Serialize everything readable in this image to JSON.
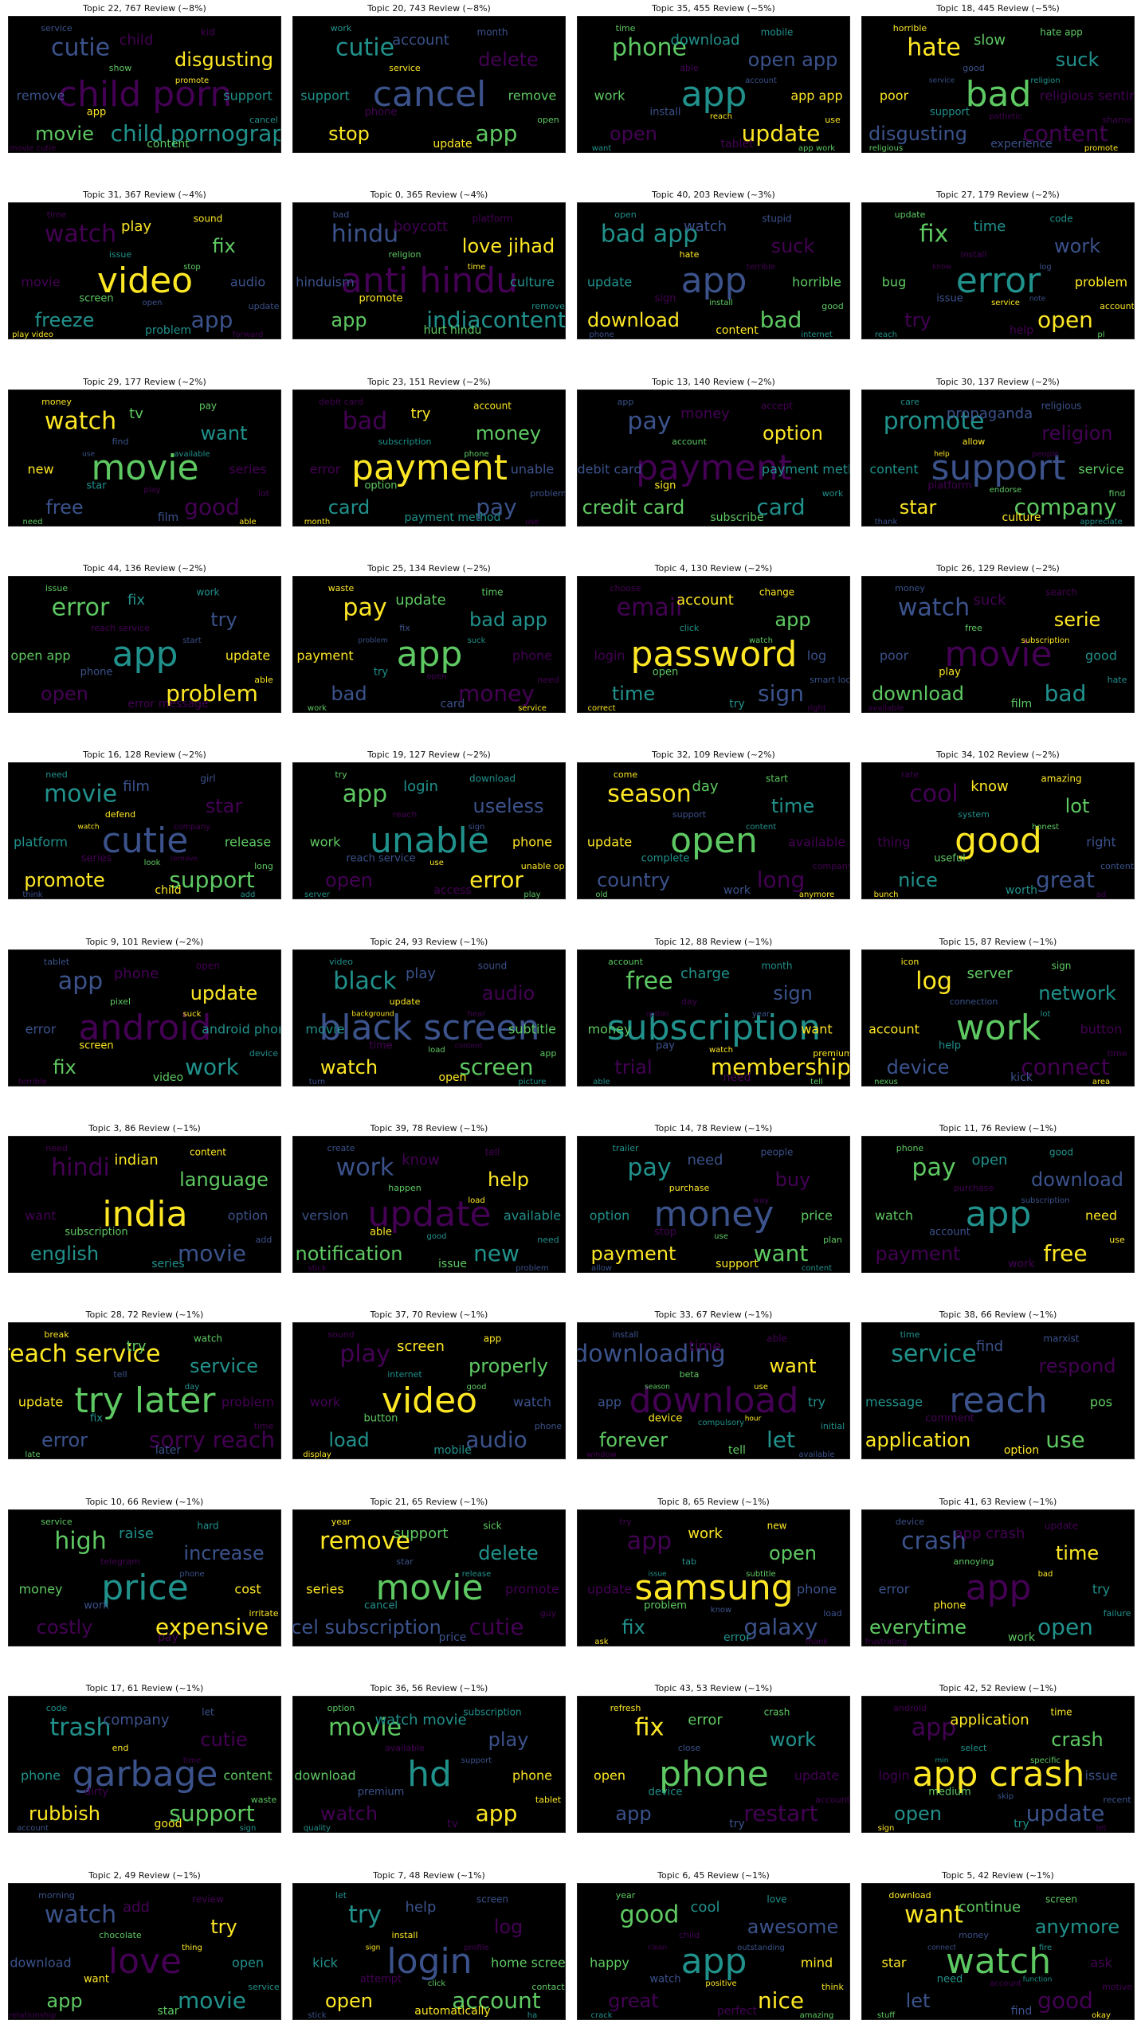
{
  "chart_data": {
    "type": "wordcloud-grid",
    "palette": [
      "#440154",
      "#3b528b",
      "#21918c",
      "#5ec962",
      "#fde725"
    ],
    "background": "#000000",
    "panels": [
      {
        "title": "Topic 22, 767 Review (~8%)",
        "words": [
          "child porn",
          "cutie",
          "child pornography",
          "movie",
          "disgusting",
          "child",
          "remove",
          "support",
          "content",
          "app",
          "kid",
          "service",
          "cancel",
          "show",
          "promote",
          "movie cutie"
        ]
      },
      {
        "title": "Topic 20, 743 Review (~8%)",
        "words": [
          "cancel",
          "cutie",
          "app",
          "stop",
          "delete",
          "account",
          "support",
          "remove",
          "update",
          "phone",
          "month",
          "work",
          "open",
          "service"
        ]
      },
      {
        "title": "Topic 35, 455 Review (~5%)",
        "words": [
          "app",
          "phone",
          "update",
          "open",
          "open app",
          "download",
          "work",
          "app app",
          "tablet",
          "install",
          "mobile",
          "time",
          "use",
          "able",
          "account",
          "want",
          "app work",
          "reach"
        ]
      },
      {
        "title": "Topic 18, 445 Review (~5%)",
        "words": [
          "bad",
          "hate",
          "content",
          "disgusting",
          "suck",
          "slow",
          "poor",
          "religious sentiment",
          "experience",
          "support",
          "hate app",
          "horrible",
          "shame",
          "good",
          "religion",
          "religious",
          "promote",
          "pathetic",
          "service"
        ]
      },
      {
        "title": "Topic 31, 367 Review (~4%)",
        "words": [
          "video",
          "watch",
          "app",
          "freeze",
          "fix",
          "play",
          "movie",
          "audio",
          "problem",
          "screen",
          "sound",
          "time",
          "update",
          "issue",
          "stop",
          "play video",
          "forward",
          "open"
        ]
      },
      {
        "title": "Topic 0, 365 Review (~4%)",
        "words": [
          "anti hindu",
          "hindu",
          "indiacontent",
          "app",
          "love jihad",
          "boycott",
          "hinduism",
          "culture",
          "hurt hindu",
          "promote",
          "platform",
          "bad",
          "remove",
          "religion",
          "time"
        ]
      },
      {
        "title": "Topic 40, 203 Review (~3%)",
        "words": [
          "app",
          "bad app",
          "bad",
          "download",
          "suck",
          "watch",
          "update",
          "horrible",
          "content",
          "sign",
          "stupid",
          "open",
          "good",
          "hate",
          "terrible",
          "phone",
          "internet",
          "install"
        ]
      },
      {
        "title": "Topic 27, 179 Review (~2%)",
        "words": [
          "error",
          "fix",
          "open",
          "try",
          "work",
          "time",
          "bug",
          "problem",
          "help",
          "issue",
          "code",
          "update",
          "account",
          "install",
          "log",
          "reach",
          "pl",
          "service",
          "know",
          "note"
        ]
      },
      {
        "title": "Topic 29, 177 Review (~2%)",
        "words": [
          "movie",
          "watch",
          "good",
          "free",
          "want",
          "tv",
          "new",
          "series",
          "film",
          "star",
          "pay",
          "money",
          "lot",
          "find",
          "available",
          "need",
          "able",
          "play",
          "use"
        ]
      },
      {
        "title": "Topic 23, 151 Review (~2%)",
        "words": [
          "payment",
          "bad",
          "pay",
          "card",
          "money",
          "try",
          "error",
          "unable",
          "payment method",
          "option",
          "account",
          "debit card",
          "problem",
          "subscription",
          "phone",
          "month",
          "use"
        ]
      },
      {
        "title": "Topic 13, 140 Review (~2%)",
        "words": [
          "payment",
          "pay",
          "card",
          "credit card",
          "option",
          "money",
          "debit card",
          "payment method",
          "subscribe",
          "sign",
          "accept",
          "app",
          "work",
          "account"
        ]
      },
      {
        "title": "Topic 30, 137 Review (~2%)",
        "words": [
          "support",
          "promote",
          "company",
          "star",
          "religion",
          "propaganda",
          "content",
          "service",
          "culture",
          "platform",
          "religious",
          "care",
          "find",
          "allow",
          "people",
          "thank",
          "appreciate",
          "endorse",
          "help"
        ]
      },
      {
        "title": "Topic 44, 136 Review (~2%)",
        "words": [
          "app",
          "error",
          "problem",
          "open",
          "try",
          "fix",
          "open app",
          "update",
          "error message",
          "phone",
          "work",
          "issue",
          "able",
          "reach service",
          "start"
        ]
      },
      {
        "title": "Topic 25, 134 Review (~2%)",
        "words": [
          "app",
          "pay",
          "money",
          "bad",
          "bad app",
          "update",
          "payment",
          "phone",
          "card",
          "try",
          "time",
          "waste",
          "need",
          "fix",
          "suck",
          "work",
          "service",
          "open",
          "problem"
        ]
      },
      {
        "title": "Topic 4, 130 Review (~2%)",
        "words": [
          "password",
          "email",
          "sign",
          "time",
          "app",
          "account",
          "login",
          "log",
          "try",
          "open",
          "change",
          "choose",
          "smart lock",
          "click",
          "watch",
          "correct",
          "right"
        ]
      },
      {
        "title": "Topic 26, 129 Review (~2%)",
        "words": [
          "movie",
          "watch",
          "bad",
          "download",
          "serie",
          "suck",
          "poor",
          "good",
          "film",
          "play",
          "search",
          "money",
          "hate",
          "free",
          "subscription",
          "available"
        ]
      },
      {
        "title": "Topic 16, 128 Review (~2%)",
        "words": [
          "cutie",
          "movie",
          "support",
          "promote",
          "star",
          "film",
          "platform",
          "release",
          "child",
          "series",
          "girl",
          "need",
          "long",
          "defend",
          "company",
          "think",
          "add",
          "look",
          "watch",
          "remove"
        ]
      },
      {
        "title": "Topic 19, 127 Review (~2%)",
        "words": [
          "unable",
          "app",
          "error",
          "open",
          "useless",
          "login",
          "work",
          "phone",
          "access",
          "reach service",
          "download",
          "try",
          "unable open",
          "reach",
          "sign",
          "server",
          "play",
          "use"
        ]
      },
      {
        "title": "Topic 32, 109 Review (~2%)",
        "words": [
          "open",
          "season",
          "long",
          "country",
          "time",
          "day",
          "update",
          "available",
          "work",
          "complete",
          "start",
          "come",
          "company",
          "support",
          "content",
          "old",
          "anymore"
        ]
      },
      {
        "title": "Topic 34, 102 Review (~2%)",
        "words": [
          "good",
          "cool",
          "great",
          "nice",
          "lot",
          "know",
          "thing",
          "right",
          "worth",
          "useful",
          "amazing",
          "rate",
          "content",
          "system",
          "honest",
          "bunch",
          "ad"
        ]
      },
      {
        "title": "Topic 9, 101 Review (~2%)",
        "words": [
          "android",
          "app",
          "work",
          "fix",
          "update",
          "phone",
          "error",
          "android phone",
          "video",
          "screen",
          "open",
          "tablet",
          "device",
          "pixel",
          "suck",
          "terrible"
        ]
      },
      {
        "title": "Topic 24, 93 Review (~1%)",
        "words": [
          "black screen",
          "black",
          "screen",
          "watch",
          "audio",
          "play",
          "movie",
          "subtitle",
          "open",
          "time",
          "sound",
          "video",
          "app",
          "update",
          "hear",
          "turn",
          "picture",
          "load",
          "background",
          "content"
        ]
      },
      {
        "title": "Topic 12, 88 Review (~1%)",
        "words": [
          "subscription",
          "free",
          "membership",
          "trial",
          "sign",
          "charge",
          "money",
          "want",
          "need",
          "pay",
          "month",
          "account",
          "premium",
          "day",
          "year",
          "able",
          "tell",
          "watch",
          "option"
        ]
      },
      {
        "title": "Topic 15, 87 Review (~1%)",
        "words": [
          "work",
          "log",
          "connect",
          "device",
          "network",
          "server",
          "account",
          "button",
          "kick",
          "help",
          "sign",
          "icon",
          "time",
          "connection",
          "lot",
          "nexus",
          "area"
        ]
      },
      {
        "title": "Topic 3, 86 Review (~1%)",
        "words": [
          "india",
          "hindi",
          "movie",
          "english",
          "language",
          "indian",
          "want",
          "option",
          "series",
          "subscription",
          "content",
          "need",
          "add"
        ]
      },
      {
        "title": "Topic 39, 78 Review (~1%)",
        "words": [
          "update",
          "work",
          "new",
          "notification",
          "help",
          "know",
          "version",
          "available",
          "issue",
          "able",
          "tell",
          "create",
          "need",
          "happen",
          "load",
          "stick",
          "problem",
          "good"
        ]
      },
      {
        "title": "Topic 14, 78 Review (~1%)",
        "words": [
          "money",
          "pay",
          "want",
          "payment",
          "buy",
          "need",
          "option",
          "price",
          "support",
          "stop",
          "people",
          "trailer",
          "plan",
          "purchase",
          "way",
          "allow",
          "content",
          "use"
        ]
      },
      {
        "title": "Topic 11, 76 Review (~1%)",
        "words": [
          "app",
          "pay",
          "free",
          "payment",
          "download",
          "open",
          "watch",
          "need",
          "work",
          "account",
          "good",
          "phone",
          "use",
          "purchase",
          "subscription"
        ]
      },
      {
        "title": "Topic 28, 72 Review (~1%)",
        "words": [
          "try later",
          "reach service",
          "sorry reach",
          "error",
          "service",
          "try",
          "update",
          "problem",
          "later",
          "fix",
          "watch",
          "break",
          "time",
          "tell",
          "day",
          "late"
        ]
      },
      {
        "title": "Topic 37, 70 Review (~1%)",
        "words": [
          "video",
          "play",
          "audio",
          "load",
          "properly",
          "screen",
          "work",
          "watch",
          "mobile",
          "button",
          "app",
          "sound",
          "phone",
          "internet",
          "good",
          "display"
        ]
      },
      {
        "title": "Topic 33, 67 Review (~1%)",
        "words": [
          "download",
          "downloading",
          "let",
          "forever",
          "want",
          "time",
          "app",
          "try",
          "tell",
          "device",
          "able",
          "install",
          "initial",
          "beta",
          "use",
          "window",
          "available",
          "compulsory",
          "season",
          "hour"
        ]
      },
      {
        "title": "Topic 38, 66 Review (~1%)",
        "words": [
          "reach",
          "service",
          "use",
          "application",
          "respond",
          "find",
          "message",
          "pos",
          "option",
          "comment",
          "marxist",
          "time"
        ]
      },
      {
        "title": "Topic 10, 66 Review (~1%)",
        "words": [
          "price",
          "high",
          "expensive",
          "costly",
          "increase",
          "raise",
          "money",
          "cost",
          "pay",
          "work",
          "hard",
          "service",
          "irritate",
          "telegram",
          "phone"
        ]
      },
      {
        "title": "Topic 21, 65 Review (~1%)",
        "words": [
          "movie",
          "remove",
          "cutie",
          "cancel subscription",
          "delete",
          "support",
          "series",
          "promote",
          "price",
          "cancel",
          "sick",
          "year",
          "guy",
          "star",
          "release"
        ]
      },
      {
        "title": "Topic 8, 65 Review (~1%)",
        "words": [
          "samsung",
          "app",
          "galaxy",
          "fix",
          "open",
          "work",
          "update",
          "phone",
          "error",
          "problem",
          "new",
          "try",
          "load",
          "tab",
          "subtitle",
          "ask",
          "thank",
          "know",
          "issue"
        ]
      },
      {
        "title": "Topic 41, 63 Review (~1%)",
        "words": [
          "app",
          "crash",
          "open",
          "everytime",
          "time",
          "app crash",
          "error",
          "try",
          "work",
          "phone",
          "update",
          "device",
          "failure",
          "annoying",
          "bad",
          "frustrating"
        ]
      },
      {
        "title": "Topic 17, 61 Review (~1%)",
        "words": [
          "garbage",
          "trash",
          "support",
          "rubbish",
          "cutie",
          "company",
          "phone",
          "content",
          "good",
          "dirty",
          "let",
          "code",
          "waste",
          "end",
          "time",
          "account",
          "sign"
        ]
      },
      {
        "title": "Topic 36, 56 Review (~1%)",
        "words": [
          "hd",
          "movie",
          "app",
          "watch",
          "play",
          "watch movie",
          "download",
          "phone",
          "tv",
          "premium",
          "subscription",
          "option",
          "tablet",
          "available",
          "support",
          "quality"
        ]
      },
      {
        "title": "Topic 43, 53 Review (~1%)",
        "words": [
          "phone",
          "fix",
          "restart",
          "app",
          "work",
          "error",
          "open",
          "update",
          "try",
          "device",
          "crash",
          "refresh",
          "account",
          "close"
        ]
      },
      {
        "title": "Topic 42, 52 Review (~1%)",
        "words": [
          "app crash",
          "app",
          "update",
          "open",
          "crash",
          "application",
          "login",
          "issue",
          "try",
          "medium",
          "time",
          "android",
          "recent",
          "select",
          "specific",
          "sign",
          "let",
          "skip",
          "min"
        ]
      },
      {
        "title": "Topic 2, 49 Review (~1%)",
        "words": [
          "love",
          "watch",
          "movie",
          "app",
          "try",
          "add",
          "download",
          "open",
          "star",
          "want",
          "review",
          "morning",
          "service",
          "chocolate",
          "thing",
          "relationship"
        ]
      },
      {
        "title": "Topic 7, 48 Review (~1%)",
        "words": [
          "login",
          "try",
          "account",
          "open",
          "log",
          "help",
          "kick",
          "home screen",
          "automatically",
          "attempt",
          "screen",
          "let",
          "contact",
          "install",
          "profile",
          "stick",
          "ha",
          "click",
          "sign"
        ]
      },
      {
        "title": "Topic 6, 45 Review (~1%)",
        "words": [
          "app",
          "good",
          "nice",
          "great",
          "awesome",
          "cool",
          "happy",
          "mind",
          "perfect",
          "watch",
          "love",
          "year",
          "think",
          "child",
          "outstanding",
          "crack",
          "amazing",
          "positive",
          "clean"
        ]
      },
      {
        "title": "Topic 5, 42 Review (~1%)",
        "words": [
          "watch",
          "want",
          "good",
          "let",
          "anymore",
          "continue",
          "star",
          "ask",
          "find",
          "need",
          "screen",
          "download",
          "motive",
          "money",
          "fire",
          "stuff",
          "okay",
          "account",
          "connect",
          "function"
        ]
      }
    ]
  }
}
